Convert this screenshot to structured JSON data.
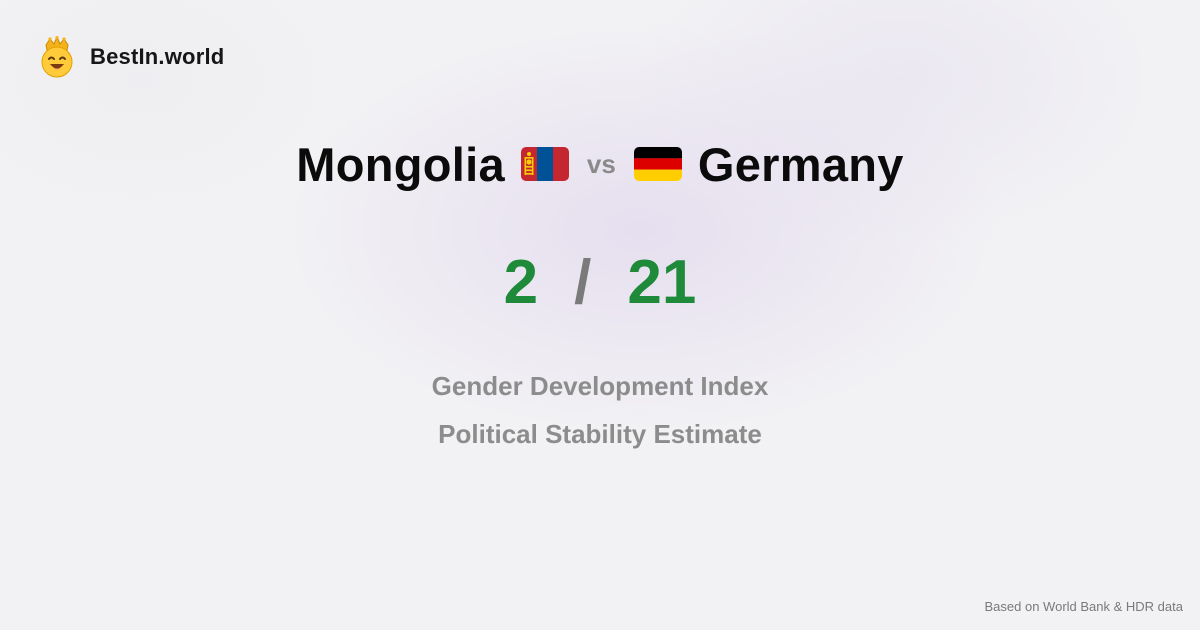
{
  "brand": {
    "name": "BestIn.world",
    "icon": "crowned-smiley-icon"
  },
  "comparison": {
    "left_country": "Mongolia",
    "left_flag": "mongolia-flag-icon",
    "vs_label": "vs",
    "right_country": "Germany",
    "right_flag": "germany-flag-icon"
  },
  "score": {
    "left": "2",
    "separator": "/",
    "right": "21"
  },
  "metrics": [
    "Gender Development Index",
    "Political Stability Estimate"
  ],
  "footer": {
    "source": "Based on World Bank & HDR data"
  },
  "colors": {
    "score_green": "#1f8a3a",
    "muted_gray": "#8c8c8c",
    "mongolia_red": "#c4272f",
    "mongolia_blue": "#015197",
    "mongolia_gold": "#f9cf02",
    "germany_black": "#000000",
    "germany_red": "#dd0000",
    "germany_gold": "#ffce00"
  }
}
